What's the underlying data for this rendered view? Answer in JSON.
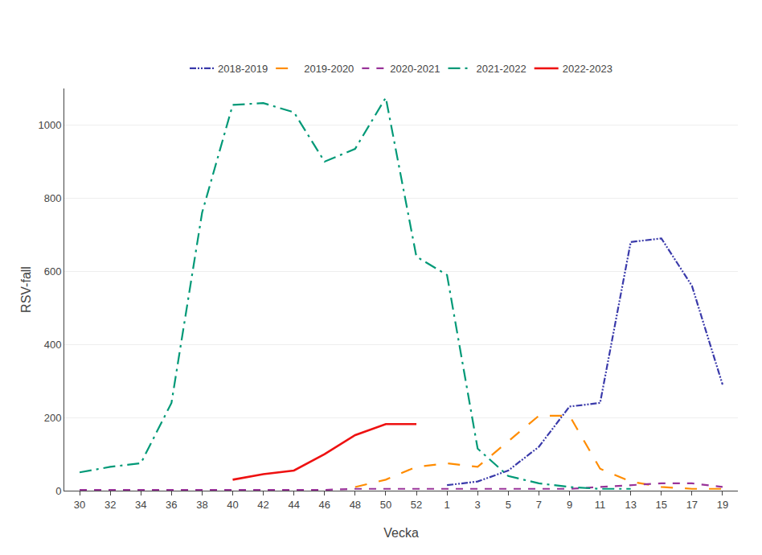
{
  "chart_data": {
    "type": "line",
    "x_label": "Vecka",
    "y_label": "RSV-fall",
    "categories": [
      "30",
      "32",
      "34",
      "36",
      "38",
      "40",
      "42",
      "44",
      "46",
      "48",
      "50",
      "52",
      "1",
      "3",
      "5",
      "7",
      "9",
      "11",
      "13",
      "15",
      "17",
      "19"
    ],
    "series": [
      {
        "name": "2018-2019",
        "color": "#3a3aaa",
        "line_style": "dashdotdot",
        "values": [
          null,
          null,
          null,
          null,
          null,
          null,
          null,
          null,
          null,
          null,
          null,
          null,
          15,
          25,
          55,
          120,
          230,
          240,
          680,
          690,
          560,
          290
        ]
      },
      {
        "name": "2019-2020",
        "color": "#ff8c00",
        "line_style": "longdash",
        "values": [
          null,
          null,
          null,
          null,
          null,
          null,
          null,
          null,
          null,
          10,
          30,
          65,
          75,
          65,
          135,
          205,
          205,
          60,
          25,
          10,
          5,
          5
        ]
      },
      {
        "name": "2020-2021",
        "color": "#993399",
        "line_style": "dash",
        "values": [
          2,
          2,
          2,
          2,
          2,
          2,
          2,
          2,
          2,
          5,
          5,
          5,
          5,
          5,
          5,
          5,
          5,
          10,
          15,
          20,
          20,
          10
        ]
      },
      {
        "name": "2021-2022",
        "color": "#009977",
        "line_style": "dashdot",
        "values": [
          50,
          65,
          75,
          240,
          760,
          1055,
          1060,
          1035,
          900,
          935,
          1075,
          640,
          590,
          115,
          40,
          20,
          10,
          5,
          5,
          null,
          null,
          null
        ]
      },
      {
        "name": "2022-2023",
        "color": "#ee1111",
        "line_style": "solid",
        "values": [
          null,
          null,
          null,
          null,
          null,
          30,
          45,
          55,
          100,
          152,
          182,
          182,
          null,
          null,
          null,
          null,
          null,
          null,
          null,
          null,
          null,
          null
        ]
      }
    ],
    "ylim": [
      0,
      1100
    ],
    "yticks": [
      0,
      200,
      400,
      600,
      800,
      1000
    ],
    "grid": true,
    "legend": "upper center"
  }
}
